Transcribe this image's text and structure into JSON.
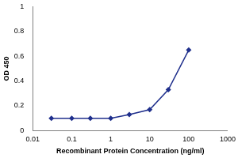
{
  "chart_data": {
    "type": "line",
    "x_label": "Recombinant Protein Concentration (ng/ml)",
    "y_label": "OD 450",
    "x": [
      0.03,
      0.1,
      0.3,
      1,
      3,
      10,
      30,
      100
    ],
    "values": [
      0.1,
      0.1,
      0.1,
      0.1,
      0.13,
      0.17,
      0.33,
      0.65
    ],
    "color": "#1f2f8c",
    "marker": "diamond",
    "log": "x",
    "xlim": [
      0.01,
      1000
    ],
    "xticks": [
      0.01,
      0.1,
      1,
      10,
      100,
      1000
    ],
    "ylim": [
      0,
      1
    ],
    "yticks": [
      0,
      0.2,
      0.4,
      0.6,
      0.8,
      1
    ],
    "grid": false
  }
}
